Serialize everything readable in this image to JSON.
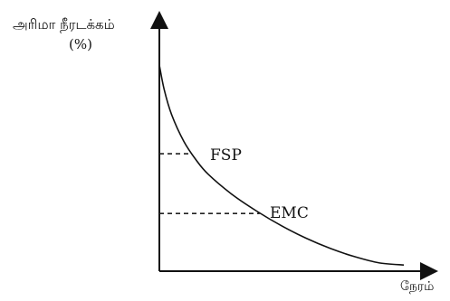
{
  "chart_data": {
    "type": "line",
    "title": "",
    "ylabel": "அரிமா நீரடக்கம்",
    "yunit": "(%)",
    "xlabel": "நேரம்",
    "grid": false,
    "legend": "none",
    "ylim": [
      0,
      100
    ],
    "xlim": [
      0,
      100
    ],
    "series": [
      {
        "x": [
          0,
          2,
          5,
          10,
          15,
          20,
          30,
          40,
          50,
          60,
          70,
          80,
          90,
          100
        ],
        "y": [
          100,
          88,
          76,
          63,
          54,
          47,
          37,
          29,
          22,
          16,
          11,
          7,
          4,
          3
        ]
      }
    ],
    "annotations": [
      {
        "label": "FSP",
        "x": 13,
        "y": 57
      },
      {
        "label": "EMC",
        "x": 41,
        "y": 28
      }
    ],
    "colors": {
      "line": "#111111",
      "dash": "#222222"
    }
  }
}
